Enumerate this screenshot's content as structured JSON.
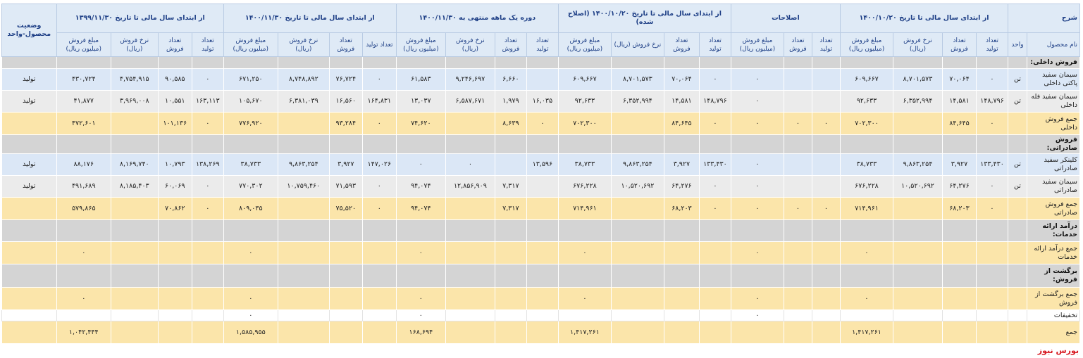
{
  "header": {
    "description": "شرح",
    "groups": [
      "از ابتدای سال مالی تا تاریخ ۱۴۰۰/۱۰/۲۰",
      "اصلاحات",
      "از ابتدای سال مالی تا تاریخ ۱۴۰۰/۱۰/۲۰ (اصلاح شده)",
      "دوره یک ماهه منتهی به ۱۴۰۰/۱۱/۳۰",
      "از ابتدای سال مالی تا تاریخ ۱۴۰۰/۱۱/۳۰",
      "از ابتدای سال مالی تا تاریخ ۱۳۹۹/۱۱/۳۰"
    ],
    "status": "وضعیت محصول-واحد",
    "columns": [
      "نام محصول",
      "واحد",
      "تعداد تولید",
      "تعداد فروش",
      "نرخ فروش (ریال)",
      "مبلغ فروش (میلیون ریال)",
      "تعداد تولید",
      "تعداد فروش",
      "مبلغ فروش (میلیون ریال)",
      "تعداد تولید",
      "تعداد فروش",
      "نرخ فروش (ریال)",
      "مبلغ فروش (میلیون ریال)",
      "تعداد تولید",
      "تعداد فروش",
      "نرخ فروش (ریال)",
      "مبلغ فروش (میلیون ریال)",
      "تعداد تولید",
      "تعداد فروش",
      "نرخ فروش (ریال)",
      "مبلغ فروش (میلیون ریال)",
      "تعداد تولید",
      "تعداد فروش",
      "نرخ فروش (ریال)",
      "مبلغ فروش (میلیون ریال)"
    ]
  },
  "table": {
    "rows": [
      [
        "فروش داخلی:"
      ],
      [
        "سیمان سفید پاکتی داخلی",
        "تن",
        "۰",
        "۷۰,۰۶۴",
        "۸,۷۰۱,۵۷۳",
        "۶۰۹,۶۶۷",
        null,
        null,
        "۰",
        "۰",
        "۷۰,۰۶۴",
        "۸,۷۰۱,۵۷۳",
        "۶۰۹,۶۶۷",
        null,
        "۶,۶۶۰",
        "۹,۲۴۶,۶۹۷",
        "۶۱,۵۸۳",
        "۰",
        "۷۶,۷۲۴",
        "۸,۷۴۸,۸۹۲",
        "۶۷۱,۲۵۰",
        "۰",
        "۹۰,۵۸۵",
        "۴,۷۵۴,۹۱۵",
        "۴۳۰,۷۲۴",
        "تولید"
      ],
      [
        "سیمان سفید فله داخلی",
        "تن",
        "۱۴۸,۷۹۶",
        "۱۴,۵۸۱",
        "۶,۳۵۲,۹۹۴",
        "۹۲,۶۳۳",
        null,
        null,
        "۰",
        "۱۴۸,۷۹۶",
        "۱۴,۵۸۱",
        "۶,۳۵۲,۹۹۴",
        "۹۲,۶۳۳",
        "۱۶,۰۳۵",
        "۱,۹۷۹",
        "۶,۵۸۷,۶۷۱",
        "۱۳,۰۳۷",
        "۱۶۴,۸۳۱",
        "۱۶,۵۶۰",
        "۶,۳۸۱,۰۳۹",
        "۱۰۵,۶۷۰",
        "۱۶۳,۱۱۳",
        "۱۰,۵۵۱",
        "۳,۹۶۹,۰۰۸",
        "۴۱,۸۷۷",
        "تولید"
      ],
      [
        "جمع فروش داخلی",
        null,
        "۰",
        "۸۴,۶۴۵",
        null,
        "۷۰۲,۳۰۰",
        "۰",
        "۰",
        "۰",
        "۰",
        "۸۴,۶۴۵",
        null,
        "۷۰۲,۳۰۰",
        "۰",
        "۸,۶۳۹",
        null,
        "۷۴,۶۲۰",
        "۰",
        "۹۳,۲۸۴",
        null,
        "۷۷۶,۹۲۰",
        "۰",
        "۱۰۱,۱۳۶",
        null,
        "۴۷۲,۶۰۱",
        null
      ],
      [
        "فروش صادراتی:"
      ],
      [
        "کلینکر سفید صادراتی",
        "تن",
        "۱۳۳,۴۳۰",
        "۳,۹۲۷",
        "۹,۸۶۳,۲۵۴",
        "۳۸,۷۳۳",
        null,
        null,
        "۰",
        "۱۳۳,۴۳۰",
        "۳,۹۲۷",
        "۹,۸۶۳,۲۵۴",
        "۳۸,۷۳۳",
        "۱۳,۵۹۶",
        null,
        "۰",
        "۰",
        "۱۴۷,۰۲۶",
        "۳,۹۲۷",
        "۹,۸۶۳,۲۵۴",
        "۳۸,۷۳۳",
        "۱۳۸,۲۶۹",
        "۱۰,۷۹۳",
        "۸,۱۶۹,۷۴۰",
        "۸۸,۱۷۶",
        "تولید"
      ],
      [
        "سیمان سفید صادراتی",
        "تن",
        "۰",
        "۶۴,۲۷۶",
        "۱۰,۵۲۰,۶۹۲",
        "۶۷۶,۲۲۸",
        null,
        null,
        "۰",
        "۰",
        "۶۴,۲۷۶",
        "۱۰,۵۲۰,۶۹۲",
        "۶۷۶,۲۲۸",
        null,
        "۷,۳۱۷",
        "۱۲,۸۵۶,۹۰۹",
        "۹۴,۰۷۴",
        "۰",
        "۷۱,۵۹۳",
        "۱۰,۷۵۹,۴۶۰",
        "۷۷۰,۳۰۲",
        "۰",
        "۶۰,۰۶۹",
        "۸,۱۸۵,۴۰۳",
        "۴۹۱,۶۸۹",
        "تولید"
      ],
      [
        "جمع فروش صادراتی",
        null,
        "۰",
        "۶۸,۲۰۳",
        null,
        "۷۱۴,۹۶۱",
        "۰",
        "۰",
        "۰",
        "۰",
        "۶۸,۲۰۳",
        null,
        "۷۱۴,۹۶۱",
        null,
        "۷,۳۱۷",
        null,
        "۹۴,۰۷۴",
        "۰",
        "۷۵,۵۲۰",
        null,
        "۸۰۹,۰۳۵",
        "۰",
        "۷۰,۸۶۲",
        null,
        "۵۷۹,۸۶۵",
        null
      ],
      [
        "درآمد ارائه خدمات:"
      ],
      [
        "جمع درآمد ارائه خدمات",
        null,
        null,
        null,
        null,
        "۰",
        null,
        null,
        "۰",
        null,
        null,
        null,
        "۰",
        null,
        null,
        null,
        "۰",
        null,
        null,
        null,
        "۰",
        null,
        null,
        null,
        "۰",
        null
      ],
      [
        "برگشت از فروش:"
      ],
      [
        "جمع برگشت از فروش",
        null,
        null,
        null,
        null,
        "۰",
        null,
        null,
        "۰",
        null,
        null,
        null,
        "۰",
        null,
        null,
        null,
        "۰",
        null,
        null,
        null,
        "۰",
        null,
        null,
        null,
        "۰",
        null
      ],
      [
        "تخفیفات",
        null,
        null,
        null,
        null,
        null,
        null,
        null,
        "۰",
        null,
        null,
        null,
        null,
        null,
        null,
        null,
        "۰",
        null,
        null,
        null,
        "۰",
        null,
        null,
        null,
        null,
        null
      ],
      [
        "جمع",
        null,
        null,
        null,
        null,
        "۱,۴۱۷,۲۶۱",
        null,
        null,
        null,
        null,
        null,
        null,
        "۱,۴۱۷,۲۶۱",
        null,
        null,
        null,
        "۱۶۸,۶۹۴",
        null,
        null,
        null,
        "۱,۵۸۵,۹۵۵",
        null,
        null,
        null,
        "۱,۰۴۲,۴۴۴",
        null
      ]
    ]
  },
  "footer": "بورس نیوز"
}
